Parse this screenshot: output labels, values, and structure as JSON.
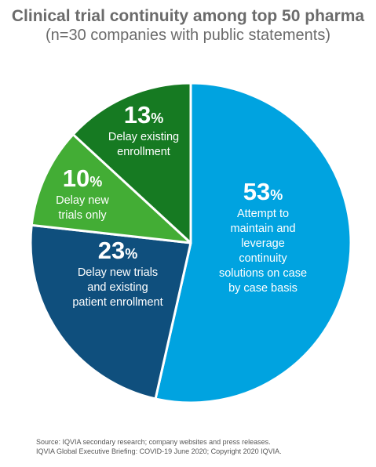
{
  "chart_data": {
    "type": "pie",
    "title": "Clinical trial continuity among top 50 pharma",
    "subtitle": "(n=30 companies with public statements)",
    "slices": [
      {
        "value": 53,
        "pct": "53",
        "label": "Attempt to maintain and leverage continuity solutions on case by case basis",
        "label_lines": [
          "Attempt to",
          "maintain and",
          "leverage",
          "continuity",
          "solutions on case",
          "by case basis"
        ],
        "color": "#00a3e0"
      },
      {
        "value": 23,
        "pct": "23",
        "label": "Delay new trials and existing patient enrollment",
        "label_lines": [
          "Delay new trials",
          "and existing",
          "patient enrollment"
        ],
        "color": "#0f4f7d"
      },
      {
        "value": 10,
        "pct": "10",
        "label": "Delay new trials only",
        "label_lines": [
          "Delay new",
          "trials only"
        ],
        "color": "#43ad35"
      },
      {
        "value": 13,
        "pct": "13",
        "label": "Delay existing enrollment",
        "label_lines": [
          "Delay existing",
          "enrollment"
        ],
        "color": "#167a22"
      }
    ],
    "percent_symbol": "%",
    "label_color": "#ffffff"
  },
  "footer": {
    "source_line1": "Source: IQVIA secondary research; company websites and press releases.",
    "source_line2": "IQVIA Global Executive Briefing: COVID-19 June 2020; Copyright 2020 IQVIA."
  }
}
